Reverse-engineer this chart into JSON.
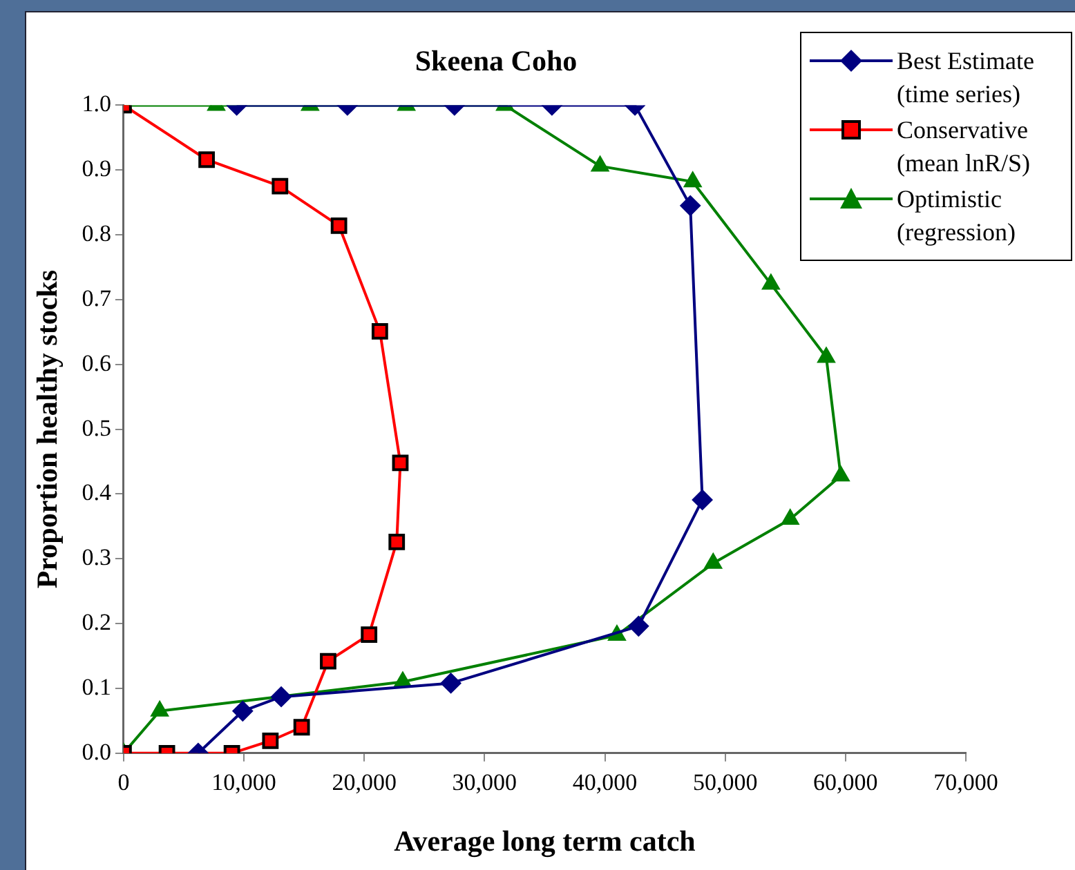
{
  "chart_data": {
    "type": "line",
    "title": "Skeena Coho",
    "xlabel": "Average long term catch",
    "ylabel": "Proportion healthy stocks",
    "series": [
      {
        "name": "Best Estimate (time series)",
        "color": "#000080",
        "marker": "diamond",
        "x": [
          9400,
          18600,
          27500,
          35600,
          42500,
          47100,
          48100,
          42800,
          27200,
          13100,
          9900,
          6200
        ],
        "values": [
          1.0,
          1.0,
          1.0,
          1.0,
          1.0,
          0.845,
          0.391,
          0.196,
          0.108,
          0.087,
          0.065,
          0.0
        ]
      },
      {
        "name": "Conservative (mean lnR/S)",
        "color": "#ff0000",
        "marker": "square",
        "x": [
          0,
          6900,
          13000,
          17900,
          21300,
          23000,
          22700,
          20400,
          17000,
          14800,
          12200,
          9000,
          3600,
          0
        ],
        "values": [
          1.0,
          0.916,
          0.875,
          0.814,
          0.651,
          0.448,
          0.326,
          0.183,
          0.142,
          0.04,
          0.019,
          0.0,
          0.0,
          0.0
        ]
      },
      {
        "name": "Optimistic (regression)",
        "color": "#008000",
        "marker": "triangle",
        "x": [
          0,
          7700,
          15500,
          23500,
          31700,
          39600,
          47300,
          53800,
          58400,
          59600,
          55400,
          49000,
          41000,
          23200,
          3000,
          0
        ],
        "values": [
          1.0,
          1.0,
          1.0,
          1.0,
          1.0,
          0.906,
          0.882,
          0.724,
          0.611,
          0.428,
          0.361,
          0.293,
          0.182,
          0.11,
          0.065,
          0.0
        ]
      }
    ],
    "xlim": [
      0,
      70000
    ],
    "xticks": [
      {
        "value": 0,
        "label": "0"
      },
      {
        "value": 10000,
        "label": "10,000"
      },
      {
        "value": 20000,
        "label": "20,000"
      },
      {
        "value": 30000,
        "label": "30,000"
      },
      {
        "value": 40000,
        "label": "40,000"
      },
      {
        "value": 50000,
        "label": "50,000"
      },
      {
        "value": 60000,
        "label": "60,000"
      },
      {
        "value": 70000,
        "label": "70,000"
      }
    ],
    "ylim": [
      0,
      1
    ],
    "yticks": [
      {
        "value": 0,
        "label": "0.0"
      },
      {
        "value": 0.1,
        "label": "0.1"
      },
      {
        "value": 0.2,
        "label": "0.2"
      },
      {
        "value": 0.3,
        "label": "0.3"
      },
      {
        "value": 0.4,
        "label": "0.4"
      },
      {
        "value": 0.5,
        "label": "0.5"
      },
      {
        "value": 0.6,
        "label": "0.6"
      },
      {
        "value": 0.7,
        "label": "0.7"
      },
      {
        "value": 0.8,
        "label": "0.8"
      },
      {
        "value": 0.9,
        "label": "0.9"
      },
      {
        "value": 1,
        "label": "1.0"
      }
    ],
    "grid": false,
    "legend": "top right",
    "line_style": "solid"
  }
}
